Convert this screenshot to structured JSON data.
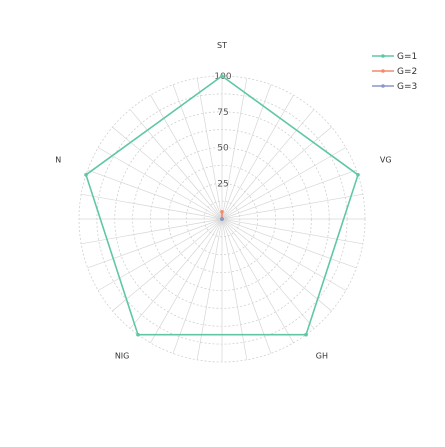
{
  "chart_data": {
    "type": "radar",
    "axes": [
      "ST",
      "VG",
      "GH",
      "NIG",
      "N"
    ],
    "r_range": [
      0,
      100
    ],
    "r_ticks": [
      "25",
      "50",
      "75",
      "100"
    ],
    "grid": true,
    "legend_position": "top-right",
    "series": [
      {
        "name": "G=1",
        "color": "#5fc7a6",
        "values": [
          100,
          100,
          100,
          100,
          100
        ]
      },
      {
        "name": "G=2",
        "color": "#f48a6c",
        "values": [
          5,
          0,
          0,
          0,
          0
        ]
      },
      {
        "name": "G=3",
        "color": "#8a97c9",
        "values": [
          0,
          0,
          0,
          0,
          0
        ]
      }
    ]
  }
}
